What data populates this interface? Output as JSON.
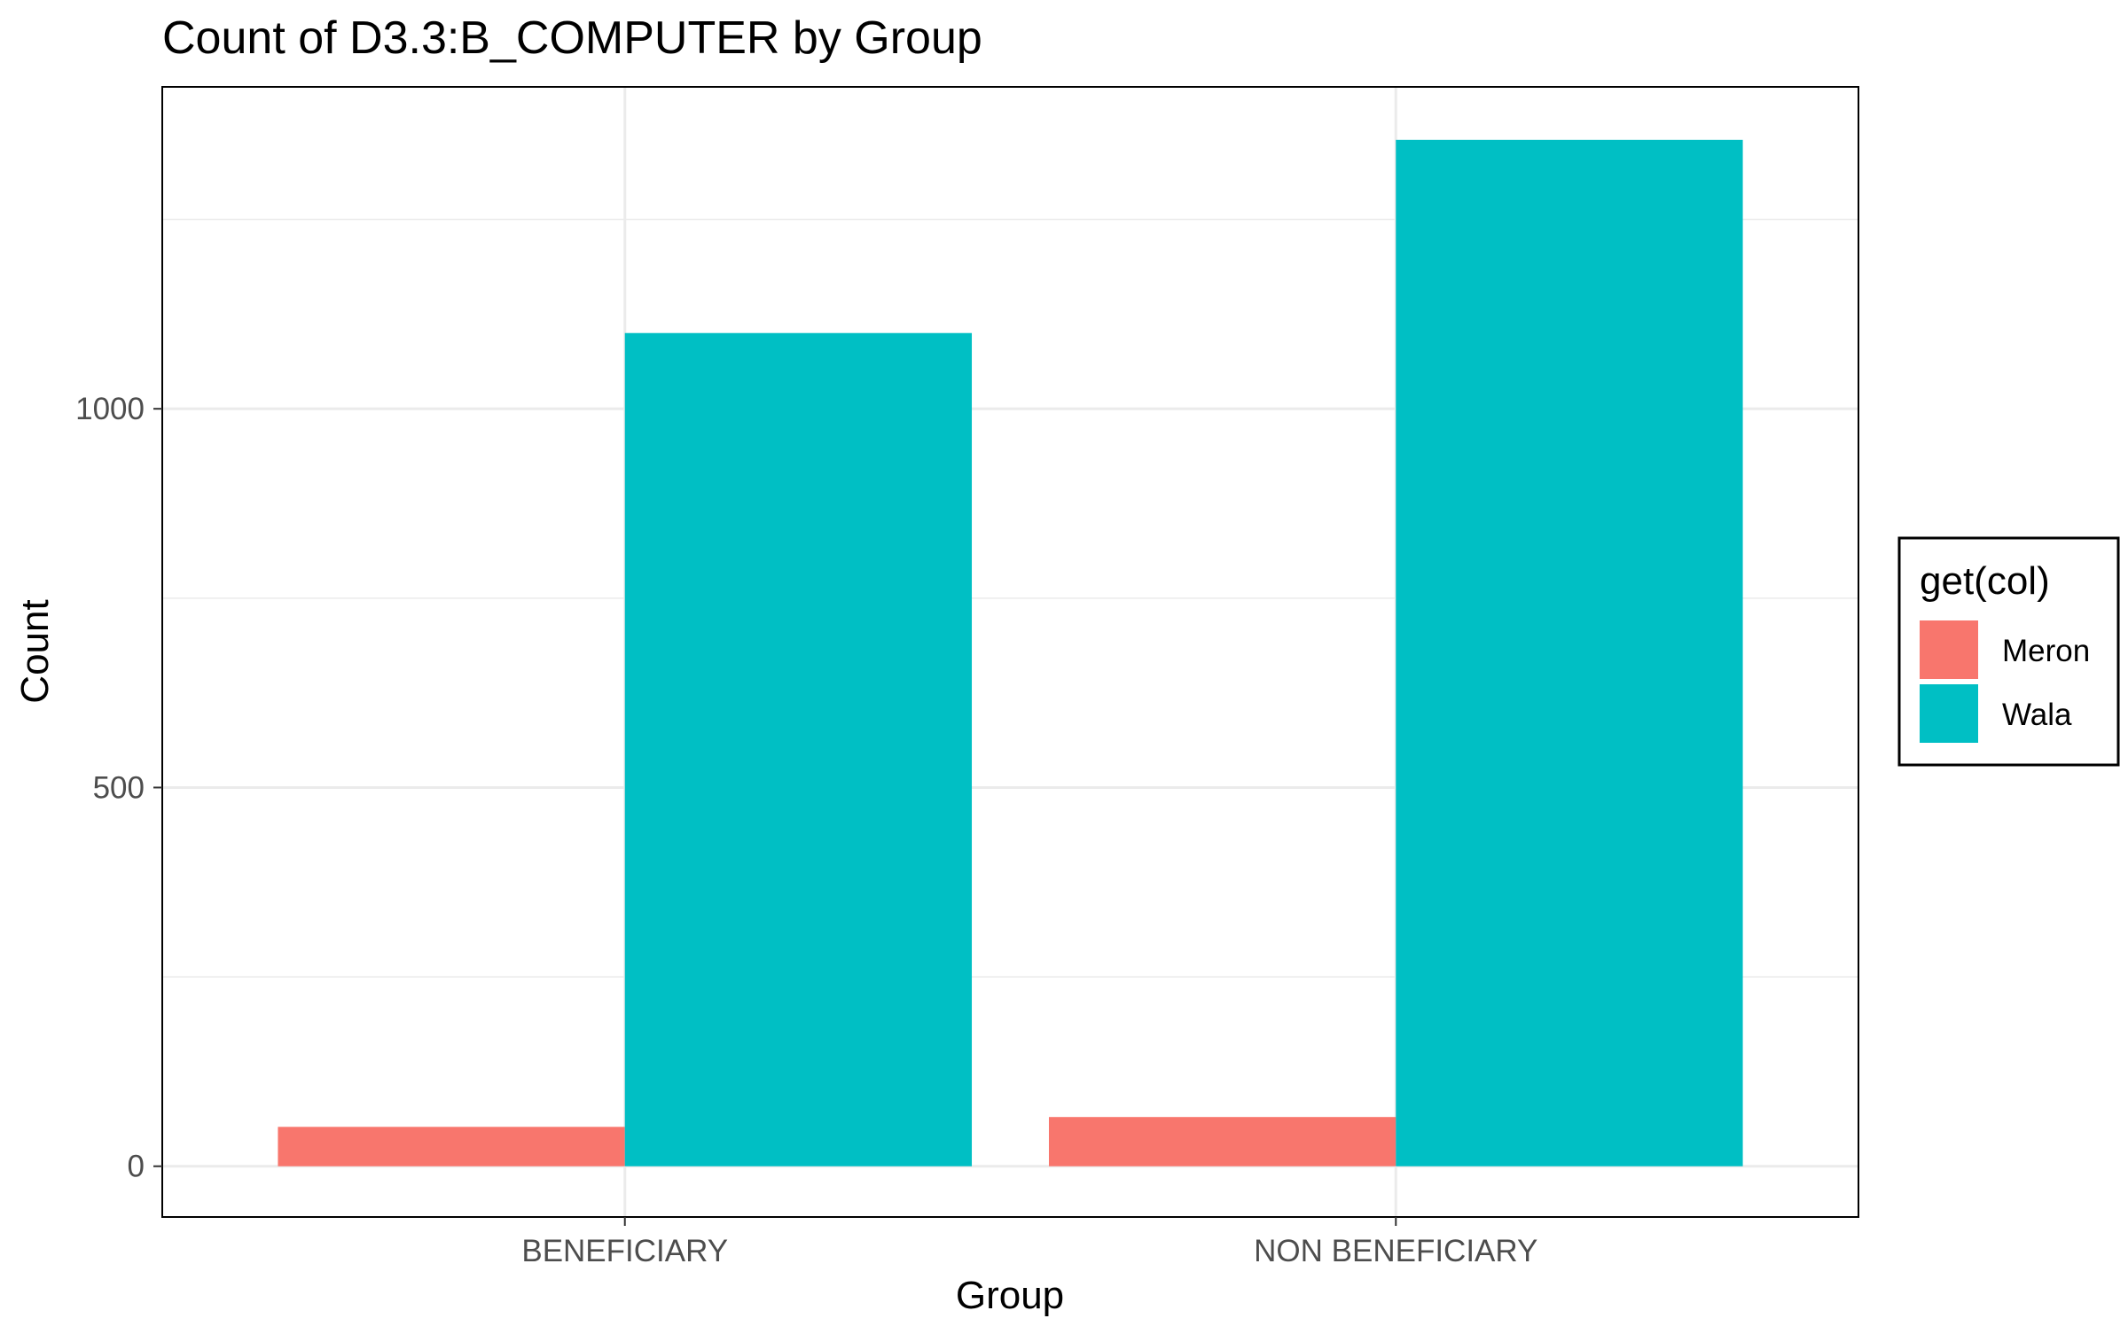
{
  "chart_data": {
    "type": "bar",
    "title": "Count of D3.3:B_COMPUTER by Group",
    "xlabel": "Group",
    "ylabel": "Count",
    "categories": [
      "BENEFICIARY",
      "NON BENEFICIARY"
    ],
    "series": [
      {
        "name": "Meron",
        "color": "#F8766D",
        "values": [
          52,
          65
        ]
      },
      {
        "name": "Wala",
        "color": "#00BFC4",
        "values": [
          1100,
          1355
        ]
      }
    ],
    "ylim": [
      -67,
      1425
    ],
    "yticks": [
      0,
      500,
      1000
    ],
    "legend": {
      "title": "get(col)",
      "position": "right"
    },
    "grid": true
  }
}
